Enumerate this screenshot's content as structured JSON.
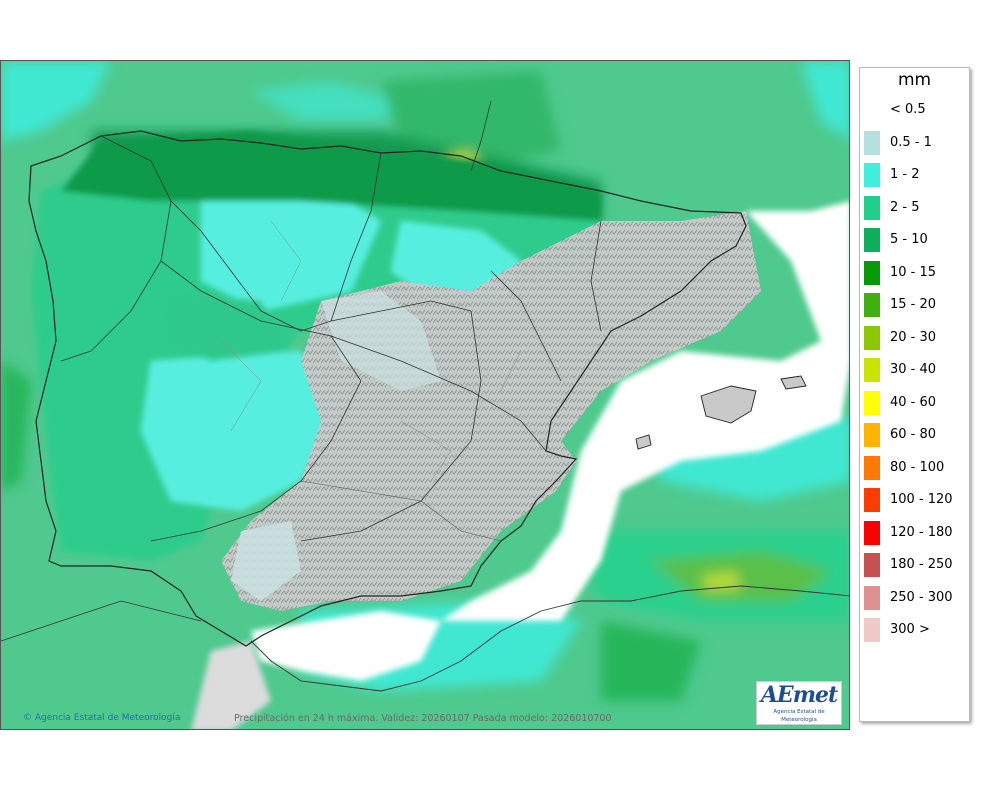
{
  "map": {
    "credit": "Agencia Estatal de Meteorología",
    "caption": "Precipitación en 24 h máxima. Validez: 20260107 Pasada modelo: 2026010700",
    "logo_text": "AEmet",
    "logo_sub": "Agencia Estatal de Meteorología"
  },
  "legend": {
    "title": "mm",
    "items": [
      {
        "label": "< 0.5",
        "color": "#ffffff"
      },
      {
        "label": "0.5 - 1",
        "color": "#b4e0e0"
      },
      {
        "label": "1 - 2",
        "color": "#3ff0dc"
      },
      {
        "label": "2 - 5",
        "color": "#1fd08c"
      },
      {
        "label": "5 - 10",
        "color": "#0db05a"
      },
      {
        "label": "10 - 15",
        "color": "#079a07"
      },
      {
        "label": "15 - 20",
        "color": "#40b010"
      },
      {
        "label": "20 - 30",
        "color": "#8cc800"
      },
      {
        "label": "30 - 40",
        "color": "#c8e400"
      },
      {
        "label": "40 - 60",
        "color": "#ffff00"
      },
      {
        "label": "60 - 80",
        "color": "#ffb400"
      },
      {
        "label": "80 - 100",
        "color": "#ff7800"
      },
      {
        "label": "100 - 120",
        "color": "#ff3c00"
      },
      {
        "label": "120 - 180",
        "color": "#ff0000"
      },
      {
        "label": "180 - 250",
        "color": "#c85050"
      },
      {
        "label": "250 - 300",
        "color": "#e09090"
      },
      {
        "label": "300 >",
        "color": "#f0c8c8"
      }
    ]
  }
}
